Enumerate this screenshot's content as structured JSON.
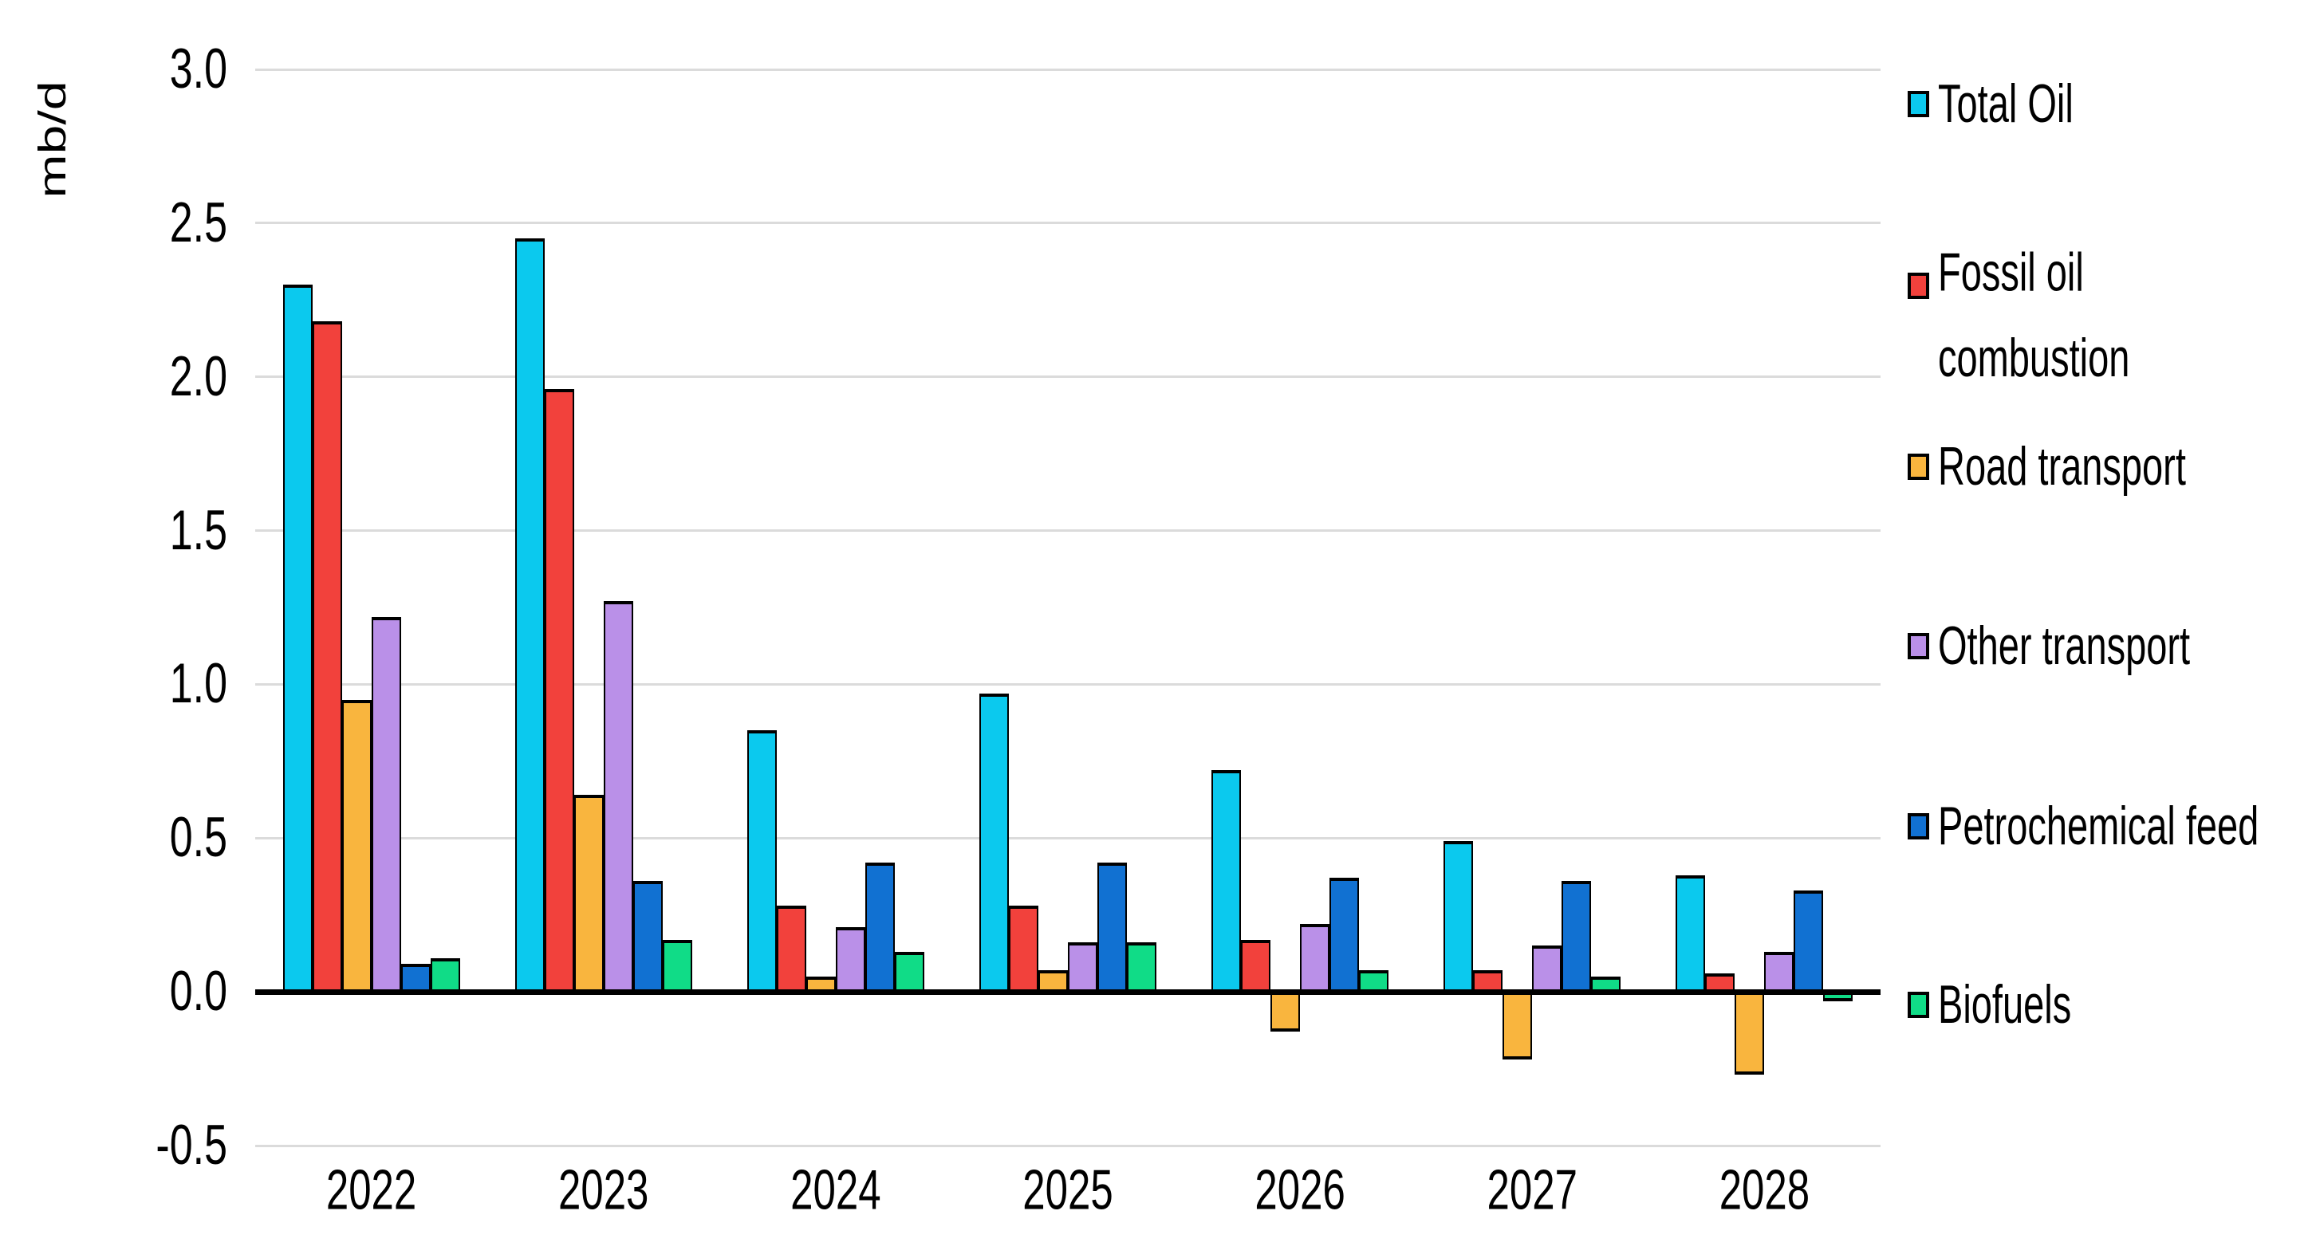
{
  "y_axis": {
    "title": "mb/d",
    "ticks": [
      "3.0",
      "2.5",
      "2.0",
      "1.5",
      "1.0",
      "0.5",
      "0.0",
      "-0.5"
    ],
    "min": -0.5,
    "max": 3.0,
    "step": 0.5
  },
  "chart_data": {
    "type": "bar",
    "title": "",
    "xlabel": "",
    "ylabel": "mb/d",
    "ylim": [
      -0.5,
      3.0
    ],
    "grid": true,
    "legend_position": "right",
    "categories": [
      "2022",
      "2023",
      "2024",
      "2025",
      "2026",
      "2027",
      "2028"
    ],
    "series": [
      {
        "name": "Total Oil",
        "color": "#0bc9ee",
        "values": [
          2.3,
          2.45,
          0.85,
          0.97,
          0.72,
          0.49,
          0.38
        ]
      },
      {
        "name": "Fossil oil combustion",
        "color": "#f2413c",
        "values": [
          2.18,
          1.96,
          0.28,
          0.28,
          0.17,
          0.07,
          0.06
        ]
      },
      {
        "name": "Road transport",
        "color": "#f9b53e",
        "values": [
          0.95,
          0.64,
          0.05,
          0.07,
          -0.13,
          -0.22,
          -0.27
        ]
      },
      {
        "name": "Other transport",
        "color": "#ba90e8",
        "values": [
          1.22,
          1.27,
          0.21,
          0.16,
          0.22,
          0.15,
          0.13
        ]
      },
      {
        "name": "Petrochemical feed",
        "color": "#1171d2",
        "values": [
          0.09,
          0.36,
          0.42,
          0.42,
          0.37,
          0.36,
          0.33
        ]
      },
      {
        "name": "Biofuels",
        "color": "#10dc87",
        "values": [
          0.11,
          0.17,
          0.13,
          0.16,
          0.07,
          0.05,
          -0.03
        ]
      }
    ]
  },
  "legend": {
    "items": [
      {
        "lines": [
          "Total Oil"
        ],
        "color": "#0bc9ee"
      },
      {
        "lines": [
          "Fossil oil",
          "combustion"
        ],
        "color": "#f2413c"
      },
      {
        "lines": [
          "Road transport"
        ],
        "color": "#f9b53e"
      },
      {
        "lines": [
          "Other transport"
        ],
        "color": "#ba90e8"
      },
      {
        "lines": [
          "Petrochemical feed"
        ],
        "color": "#1171d2"
      },
      {
        "lines": [
          "Biofuels"
        ],
        "color": "#10dc87"
      }
    ]
  },
  "colors": {
    "gridline": "#dbdbdb",
    "axis": "#000000",
    "text": "#000000",
    "background": "#ffffff"
  }
}
